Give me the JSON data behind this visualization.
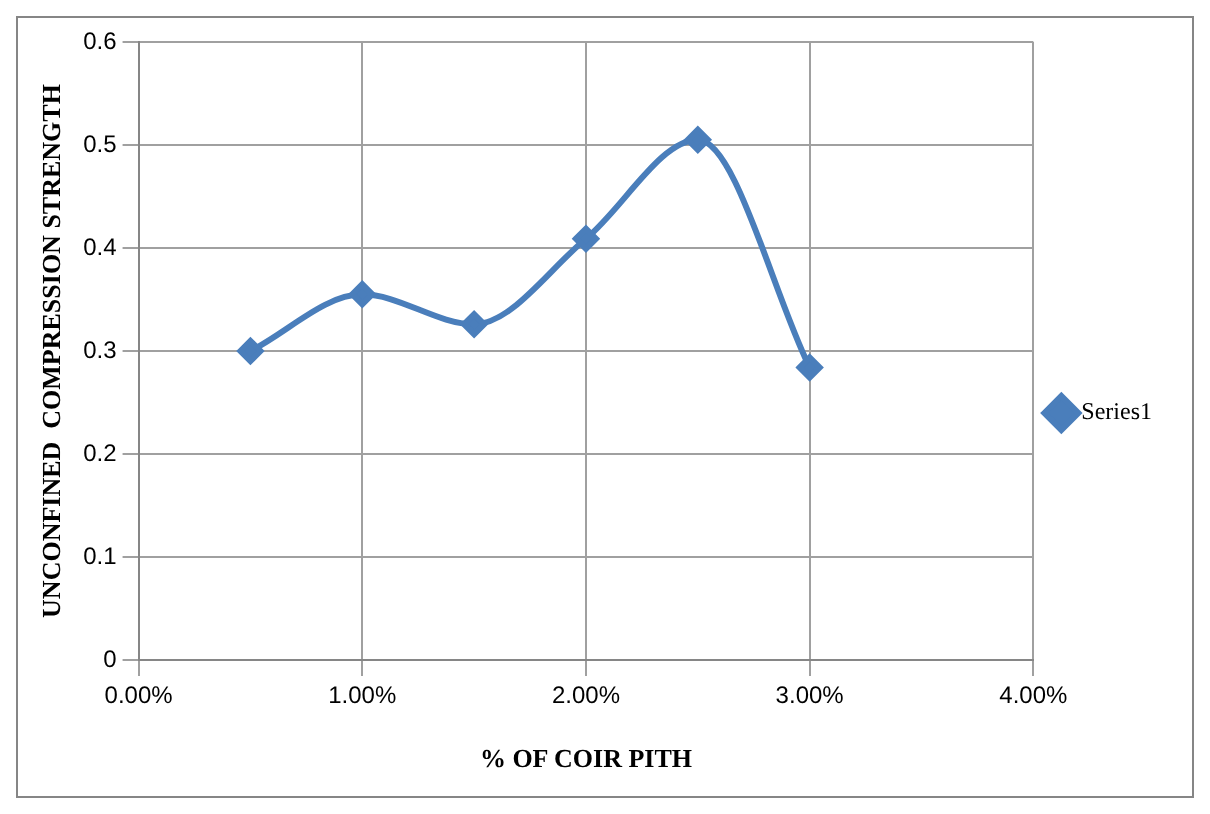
{
  "chart_data": {
    "type": "line",
    "xlabel": "% OF COIR PITH",
    "ylabel": "UNCONFINED  COMPRESSION STRENGTH",
    "x": [
      0.5,
      1,
      1.5,
      2,
      2.5,
      3
    ],
    "series": [
      {
        "name": "Series1",
        "color": "#4a7ebb",
        "values": [
          0.3,
          0.355,
          0.326,
          0.409,
          0.505,
          0.284
        ]
      }
    ],
    "xlim": [
      0,
      4
    ],
    "xticks": [
      {
        "value": 0,
        "label": "0.00%"
      },
      {
        "value": 1,
        "label": "1.00%"
      },
      {
        "value": 2,
        "label": "2.00%"
      },
      {
        "value": 3,
        "label": "3.00%"
      },
      {
        "value": 4,
        "label": "4.00%"
      }
    ],
    "ylim": [
      0,
      0.6
    ],
    "yticks": [
      0,
      0.1,
      0.2,
      0.3,
      0.4,
      0.5,
      0.6
    ],
    "grid": true,
    "legend": "right",
    "marker": "diamond",
    "line_style": "solid"
  }
}
